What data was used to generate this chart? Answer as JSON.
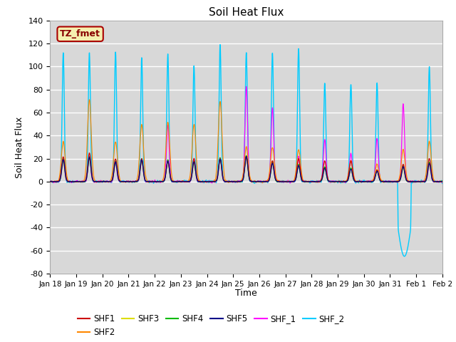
{
  "title": "Soil Heat Flux",
  "ylabel": "Soil Heat Flux",
  "xlabel": "Time",
  "ylim": [
    -80,
    140
  ],
  "bg_color": "#d8d8d8",
  "fig_color": "#ffffff",
  "annotation_text": "TZ_fmet",
  "annotation_bg": "#f5f0b0",
  "annotation_border": "#aa0000",
  "series_colors": {
    "SHF1": "#cc0000",
    "SHF2": "#ff8800",
    "SHF3": "#dddd00",
    "SHF4": "#00bb00",
    "SHF5": "#000088",
    "SHF_1": "#ff00ff",
    "SHF_2": "#00ccff"
  },
  "xtick_labels": [
    "Jan 18",
    "Jan 19",
    "Jan 20",
    "Jan 21",
    "Jan 22",
    "Jan 23",
    "Jan 24",
    "Jan 25",
    "Jan 26",
    "Jan 27",
    "Jan 28",
    "Jan 29",
    "Jan 30",
    "Jan 31",
    "Feb 1",
    "Feb 2"
  ],
  "n_days": 15,
  "pts_per_day": 288
}
